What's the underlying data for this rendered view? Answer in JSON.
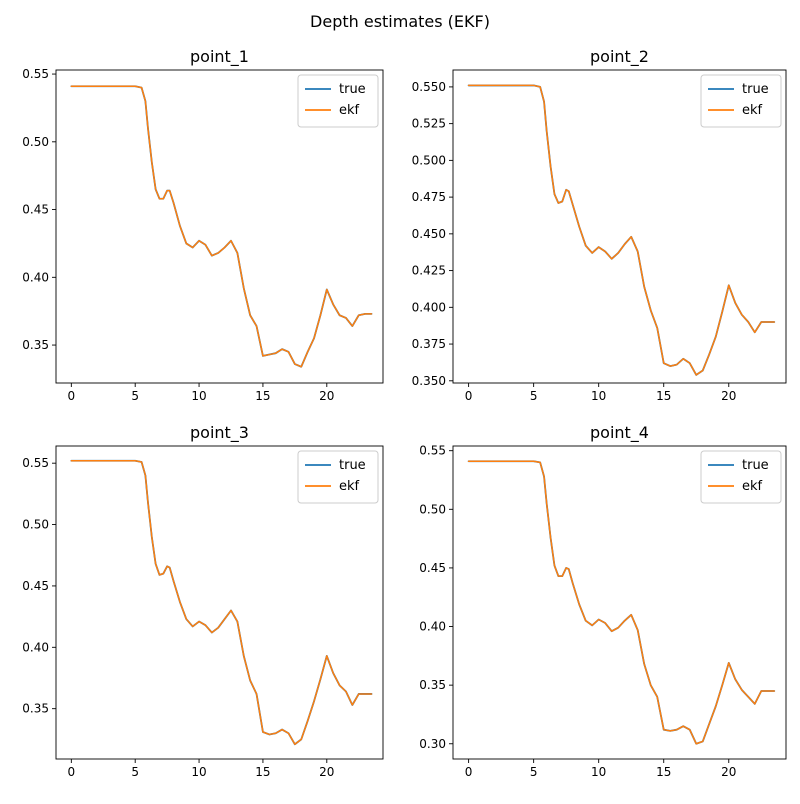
{
  "figure": {
    "title": "Depth estimates (EKF)"
  },
  "colors": {
    "true": "#1f77b4",
    "ekf": "#ff7f0e"
  },
  "chart_data": [
    {
      "type": "line",
      "title": "point_1",
      "xlabel": "",
      "ylabel": "",
      "xlim": [
        -1.2,
        24.4
      ],
      "ylim": [
        0.322,
        0.553
      ],
      "xticks": [
        0,
        5,
        10,
        15,
        20
      ],
      "xtick_labels": [
        "0",
        "5",
        "10",
        "15",
        "20"
      ],
      "yticks": [
        0.35,
        0.4,
        0.45,
        0.5,
        0.55
      ],
      "ytick_labels": [
        "0.35",
        "0.40",
        "0.45",
        "0.50",
        "0.55"
      ],
      "legend": "top-right",
      "grid": false,
      "x": [
        0,
        1,
        2,
        3,
        4,
        5,
        5.5,
        5.8,
        6.0,
        6.3,
        6.6,
        6.9,
        7.2,
        7.5,
        7.7,
        8.0,
        8.5,
        9.0,
        9.5,
        10.0,
        10.5,
        11.0,
        11.5,
        12.0,
        12.5,
        13.0,
        13.5,
        14.0,
        14.5,
        15.0,
        15.5,
        16.0,
        16.5,
        17.0,
        17.5,
        18.0,
        18.5,
        19.0,
        19.5,
        20.0,
        20.5,
        21.0,
        21.5,
        22.0,
        22.5,
        23.0,
        23.5
      ],
      "series": [
        {
          "name": "true",
          "values": [
            0.541,
            0.541,
            0.541,
            0.541,
            0.541,
            0.541,
            0.54,
            0.53,
            0.51,
            0.485,
            0.465,
            0.458,
            0.458,
            0.464,
            0.464,
            0.455,
            0.438,
            0.425,
            0.422,
            0.427,
            0.424,
            0.416,
            0.418,
            0.422,
            0.427,
            0.418,
            0.392,
            0.372,
            0.364,
            0.342,
            0.343,
            0.344,
            0.347,
            0.345,
            0.336,
            0.334,
            0.345,
            0.355,
            0.372,
            0.391,
            0.38,
            0.372,
            0.37,
            0.364,
            0.372,
            0.373,
            0.373
          ]
        },
        {
          "name": "ekf",
          "values": [
            0.541,
            0.541,
            0.541,
            0.541,
            0.541,
            0.541,
            0.54,
            0.53,
            0.51,
            0.485,
            0.465,
            0.458,
            0.458,
            0.464,
            0.464,
            0.455,
            0.438,
            0.425,
            0.422,
            0.427,
            0.424,
            0.416,
            0.418,
            0.422,
            0.427,
            0.418,
            0.392,
            0.372,
            0.364,
            0.342,
            0.343,
            0.344,
            0.347,
            0.345,
            0.336,
            0.334,
            0.345,
            0.355,
            0.372,
            0.391,
            0.38,
            0.372,
            0.37,
            0.364,
            0.372,
            0.373,
            0.373
          ]
        }
      ]
    },
    {
      "type": "line",
      "title": "point_2",
      "xlabel": "",
      "ylabel": "",
      "xlim": [
        -1.2,
        24.4
      ],
      "ylim": [
        0.3485,
        0.5615
      ],
      "xticks": [
        0,
        5,
        10,
        15,
        20
      ],
      "xtick_labels": [
        "0",
        "5",
        "10",
        "15",
        "20"
      ],
      "yticks": [
        0.35,
        0.375,
        0.4,
        0.425,
        0.45,
        0.475,
        0.5,
        0.525,
        0.55
      ],
      "ytick_labels": [
        "0.350",
        "0.375",
        "0.400",
        "0.425",
        "0.450",
        "0.475",
        "0.500",
        "0.525",
        "0.550"
      ],
      "legend": "top-right",
      "grid": false,
      "x": [
        0,
        1,
        2,
        3,
        4,
        5,
        5.5,
        5.8,
        6.0,
        6.3,
        6.6,
        6.9,
        7.2,
        7.5,
        7.7,
        8.0,
        8.5,
        9.0,
        9.5,
        10.0,
        10.5,
        11.0,
        11.5,
        12.0,
        12.5,
        13.0,
        13.5,
        14.0,
        14.5,
        15.0,
        15.5,
        16.0,
        16.5,
        17.0,
        17.5,
        18.0,
        18.5,
        19.0,
        19.5,
        20.0,
        20.5,
        21.0,
        21.5,
        22.0,
        22.5,
        23.0,
        23.5
      ],
      "series": [
        {
          "name": "true",
          "values": [
            0.551,
            0.551,
            0.551,
            0.551,
            0.551,
            0.551,
            0.55,
            0.54,
            0.52,
            0.496,
            0.477,
            0.471,
            0.472,
            0.48,
            0.479,
            0.47,
            0.455,
            0.442,
            0.437,
            0.441,
            0.438,
            0.433,
            0.437,
            0.443,
            0.448,
            0.438,
            0.414,
            0.398,
            0.386,
            0.362,
            0.36,
            0.361,
            0.365,
            0.362,
            0.354,
            0.357,
            0.368,
            0.38,
            0.397,
            0.415,
            0.403,
            0.395,
            0.39,
            0.383,
            0.39,
            0.39,
            0.39
          ]
        },
        {
          "name": "ekf",
          "values": [
            0.551,
            0.551,
            0.551,
            0.551,
            0.551,
            0.551,
            0.55,
            0.54,
            0.52,
            0.496,
            0.477,
            0.471,
            0.472,
            0.48,
            0.479,
            0.47,
            0.455,
            0.442,
            0.437,
            0.441,
            0.438,
            0.433,
            0.437,
            0.443,
            0.448,
            0.438,
            0.414,
            0.398,
            0.386,
            0.362,
            0.36,
            0.361,
            0.365,
            0.362,
            0.354,
            0.357,
            0.368,
            0.38,
            0.397,
            0.415,
            0.403,
            0.395,
            0.39,
            0.383,
            0.39,
            0.39,
            0.39
          ]
        }
      ]
    },
    {
      "type": "line",
      "title": "point_3",
      "xlabel": "",
      "ylabel": "",
      "xlim": [
        -1.2,
        24.4
      ],
      "ylim": [
        0.309,
        0.564
      ],
      "xticks": [
        0,
        5,
        10,
        15,
        20
      ],
      "xtick_labels": [
        "0",
        "5",
        "10",
        "15",
        "20"
      ],
      "yticks": [
        0.35,
        0.4,
        0.45,
        0.5,
        0.55
      ],
      "ytick_labels": [
        "0.35",
        "0.40",
        "0.45",
        "0.50",
        "0.55"
      ],
      "legend": "top-right",
      "grid": false,
      "x": [
        0,
        1,
        2,
        3,
        4,
        5,
        5.5,
        5.8,
        6.0,
        6.3,
        6.6,
        6.9,
        7.2,
        7.5,
        7.7,
        8.0,
        8.5,
        9.0,
        9.5,
        10.0,
        10.5,
        11.0,
        11.5,
        12.0,
        12.5,
        13.0,
        13.5,
        14.0,
        14.5,
        15.0,
        15.5,
        16.0,
        16.5,
        17.0,
        17.5,
        18.0,
        18.5,
        19.0,
        19.5,
        20.0,
        20.5,
        21.0,
        21.5,
        22.0,
        22.5,
        23.0,
        23.5
      ],
      "series": [
        {
          "name": "true",
          "values": [
            0.552,
            0.552,
            0.552,
            0.552,
            0.552,
            0.552,
            0.551,
            0.54,
            0.518,
            0.49,
            0.468,
            0.459,
            0.46,
            0.466,
            0.465,
            0.454,
            0.437,
            0.423,
            0.417,
            0.421,
            0.418,
            0.412,
            0.416,
            0.423,
            0.43,
            0.421,
            0.393,
            0.373,
            0.362,
            0.331,
            0.329,
            0.33,
            0.333,
            0.33,
            0.321,
            0.325,
            0.34,
            0.356,
            0.374,
            0.393,
            0.379,
            0.369,
            0.364,
            0.353,
            0.362,
            0.362,
            0.362
          ]
        },
        {
          "name": "ekf",
          "values": [
            0.552,
            0.552,
            0.552,
            0.552,
            0.552,
            0.552,
            0.551,
            0.54,
            0.518,
            0.49,
            0.468,
            0.459,
            0.46,
            0.466,
            0.465,
            0.454,
            0.437,
            0.423,
            0.417,
            0.421,
            0.418,
            0.412,
            0.416,
            0.423,
            0.43,
            0.421,
            0.393,
            0.373,
            0.362,
            0.331,
            0.329,
            0.33,
            0.333,
            0.33,
            0.321,
            0.325,
            0.34,
            0.356,
            0.374,
            0.393,
            0.379,
            0.369,
            0.364,
            0.353,
            0.362,
            0.362,
            0.362
          ]
        }
      ]
    },
    {
      "type": "line",
      "title": "point_4",
      "xlabel": "",
      "ylabel": "",
      "xlim": [
        -1.2,
        24.4
      ],
      "ylim": [
        0.287,
        0.554
      ],
      "xticks": [
        0,
        5,
        10,
        15,
        20
      ],
      "xtick_labels": [
        "0",
        "5",
        "10",
        "15",
        "20"
      ],
      "yticks": [
        0.3,
        0.35,
        0.4,
        0.45,
        0.5,
        0.55
      ],
      "ytick_labels": [
        "0.30",
        "0.35",
        "0.40",
        "0.45",
        "0.50",
        "0.55"
      ],
      "legend": "top-right",
      "grid": false,
      "x": [
        0,
        1,
        2,
        3,
        4,
        5,
        5.5,
        5.8,
        6.0,
        6.3,
        6.6,
        6.9,
        7.2,
        7.5,
        7.7,
        8.0,
        8.5,
        9.0,
        9.5,
        10.0,
        10.5,
        11.0,
        11.5,
        12.0,
        12.5,
        13.0,
        13.5,
        14.0,
        14.5,
        15.0,
        15.5,
        16.0,
        16.5,
        17.0,
        17.5,
        18.0,
        18.5,
        19.0,
        19.5,
        20.0,
        20.5,
        21.0,
        21.5,
        22.0,
        22.5,
        23.0,
        23.5
      ],
      "series": [
        {
          "name": "true",
          "values": [
            0.541,
            0.541,
            0.541,
            0.541,
            0.541,
            0.541,
            0.54,
            0.528,
            0.505,
            0.476,
            0.452,
            0.443,
            0.443,
            0.45,
            0.449,
            0.437,
            0.419,
            0.405,
            0.401,
            0.406,
            0.403,
            0.396,
            0.399,
            0.405,
            0.41,
            0.397,
            0.368,
            0.35,
            0.34,
            0.312,
            0.311,
            0.312,
            0.315,
            0.312,
            0.3,
            0.302,
            0.317,
            0.332,
            0.35,
            0.369,
            0.355,
            0.346,
            0.34,
            0.334,
            0.345,
            0.345,
            0.345
          ]
        },
        {
          "name": "ekf",
          "values": [
            0.541,
            0.541,
            0.541,
            0.541,
            0.541,
            0.541,
            0.54,
            0.528,
            0.505,
            0.476,
            0.452,
            0.443,
            0.443,
            0.45,
            0.449,
            0.437,
            0.419,
            0.405,
            0.401,
            0.406,
            0.403,
            0.396,
            0.399,
            0.405,
            0.41,
            0.397,
            0.368,
            0.35,
            0.34,
            0.312,
            0.311,
            0.312,
            0.315,
            0.312,
            0.3,
            0.302,
            0.317,
            0.332,
            0.35,
            0.369,
            0.355,
            0.346,
            0.34,
            0.334,
            0.345,
            0.345,
            0.345
          ]
        }
      ]
    }
  ]
}
